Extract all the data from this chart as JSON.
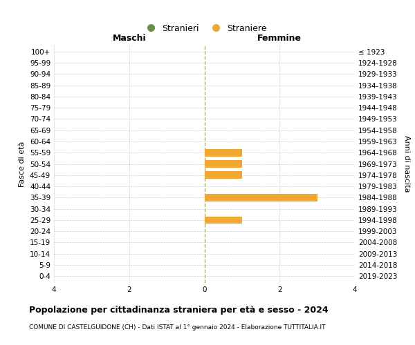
{
  "age_groups": [
    "100+",
    "95-99",
    "90-94",
    "85-89",
    "80-84",
    "75-79",
    "70-74",
    "65-69",
    "60-64",
    "55-59",
    "50-54",
    "45-49",
    "40-44",
    "35-39",
    "30-34",
    "25-29",
    "20-24",
    "15-19",
    "10-14",
    "5-9",
    "0-4"
  ],
  "birth_years": [
    "≤ 1923",
    "1924-1928",
    "1929-1933",
    "1934-1938",
    "1939-1943",
    "1944-1948",
    "1949-1953",
    "1954-1958",
    "1959-1963",
    "1964-1968",
    "1969-1973",
    "1974-1978",
    "1979-1983",
    "1984-1988",
    "1989-1993",
    "1994-1998",
    "1999-2003",
    "2004-2008",
    "2009-2013",
    "2014-2018",
    "2019-2023"
  ],
  "males": [
    0,
    0,
    0,
    0,
    0,
    0,
    0,
    0,
    0,
    0,
    0,
    0,
    0,
    0,
    0,
    0,
    0,
    0,
    0,
    0,
    0
  ],
  "females": [
    0,
    0,
    0,
    0,
    0,
    0,
    0,
    0,
    0,
    1,
    1,
    1,
    0,
    3,
    0,
    1,
    0,
    0,
    0,
    0,
    0
  ],
  "male_color": "#6b8f47",
  "female_color": "#f0a830",
  "xlim": 4,
  "title": "Popolazione per cittadinanza straniera per età e sesso - 2024",
  "subtitle": "COMUNE DI CASTELGUIDONE (CH) - Dati ISTAT al 1° gennaio 2024 - Elaborazione TUTTITALIA.IT",
  "ylabel_left": "Fasce di età",
  "ylabel_right": "Anni di nascita",
  "legend_male": "Stranieri",
  "legend_female": "Straniere",
  "header_male": "Maschi",
  "header_female": "Femmine",
  "background_color": "#ffffff",
  "grid_color": "#d0d0d0"
}
